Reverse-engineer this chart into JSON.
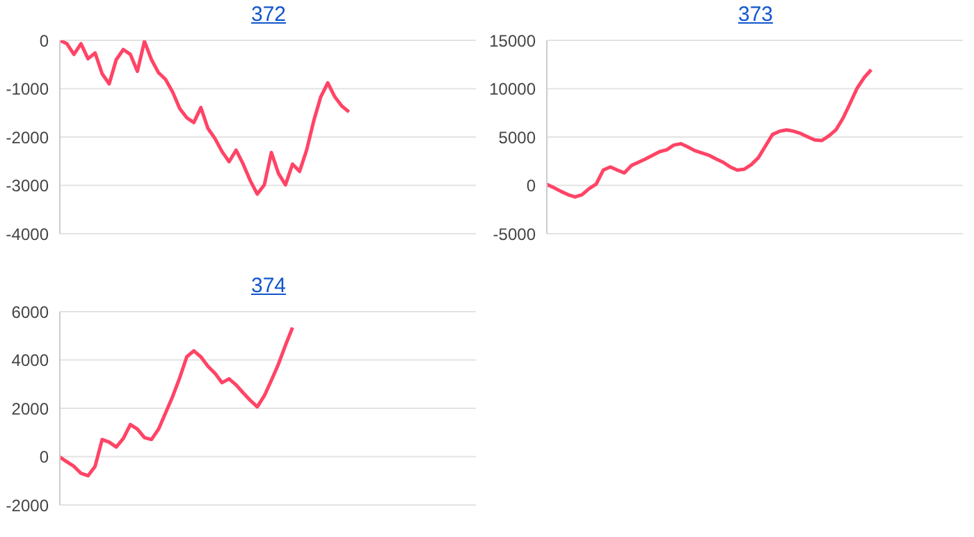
{
  "chart_data": [
    {
      "type": "line",
      "title": "372",
      "categories": [
        null,
        null,
        null,
        null,
        null,
        null,
        null,
        null,
        null,
        null,
        null,
        null,
        null,
        null,
        null,
        null,
        null,
        null,
        null,
        null,
        null,
        null,
        null,
        null,
        null,
        null,
        null,
        null,
        null,
        null,
        null,
        null,
        null,
        null,
        null,
        null,
        null,
        null,
        null,
        null,
        null,
        null,
        null,
        null,
        null,
        null,
        null,
        null,
        null,
        null,
        null,
        null,
        null,
        null,
        null,
        null,
        null,
        null,
        null,
        null
      ],
      "series": [
        {
          "color": "#ff4466",
          "values": [
            0,
            -70,
            -290,
            -70,
            -380,
            -260,
            -690,
            -900,
            -400,
            -190,
            -290,
            -640,
            -20,
            -400,
            -670,
            -810,
            -1070,
            -1410,
            -1600,
            -1700,
            -1390,
            -1820,
            -2030,
            -2300,
            -2510,
            -2270,
            -2560,
            -2900,
            -3180,
            -2990,
            -2320,
            -2750,
            -2990,
            -2560,
            -2710,
            -2270,
            -1670,
            -1170,
            -880,
            -1170,
            -1360,
            -1480,
            null,
            null,
            null,
            null,
            null,
            null,
            null,
            null,
            null,
            null,
            null,
            null,
            null,
            null,
            null,
            null,
            null,
            null
          ]
        }
      ],
      "ylim": [
        -4000,
        0
      ],
      "yticks": [
        -4000,
        -3000,
        -2000,
        -1000,
        0
      ],
      "grid": "y",
      "tick_labels": "y",
      "legend": false,
      "marker": "none",
      "line_style": "solid"
    },
    {
      "type": "line",
      "title": "373",
      "categories": [
        null,
        null,
        null,
        null,
        null,
        null,
        null,
        null,
        null,
        null,
        null,
        null,
        null,
        null,
        null,
        null,
        null,
        null,
        null,
        null,
        null,
        null,
        null,
        null,
        null,
        null,
        null,
        null,
        null,
        null,
        null,
        null,
        null,
        null,
        null,
        null,
        null,
        null,
        null,
        null,
        null,
        null,
        null,
        null,
        null,
        null,
        null,
        null,
        null,
        null,
        null,
        null,
        null,
        null,
        null,
        null,
        null,
        null,
        null,
        null
      ],
      "series": [
        {
          "color": "#ff4466",
          "values": [
            100,
            -240,
            -620,
            -960,
            -1200,
            -960,
            -330,
            140,
            1580,
            1910,
            1580,
            1290,
            2060,
            2390,
            2730,
            3110,
            3490,
            3680,
            4160,
            4310,
            3970,
            3590,
            3350,
            3110,
            2730,
            2390,
            1910,
            1580,
            1670,
            2150,
            2870,
            4070,
            5260,
            5600,
            5740,
            5600,
            5360,
            5020,
            4690,
            4640,
            5120,
            5740,
            6940,
            8470,
            10050,
            11150,
            11960,
            null,
            null,
            null,
            null,
            null,
            null,
            null,
            null,
            null,
            null,
            null,
            null,
            null
          ]
        }
      ],
      "ylim": [
        -5000,
        15000
      ],
      "yticks": [
        -5000,
        0,
        5000,
        10000,
        15000
      ],
      "grid": "y",
      "tick_labels": "y",
      "legend": false,
      "marker": "none",
      "line_style": "solid"
    },
    {
      "type": "line",
      "title": "374",
      "categories": [
        null,
        null,
        null,
        null,
        null,
        null,
        null,
        null,
        null,
        null,
        null,
        null,
        null,
        null,
        null,
        null,
        null,
        null,
        null,
        null,
        null,
        null,
        null,
        null,
        null,
        null,
        null,
        null,
        null,
        null,
        null,
        null,
        null,
        null,
        null,
        null,
        null,
        null,
        null,
        null,
        null,
        null,
        null,
        null,
        null,
        null,
        null,
        null,
        null,
        null,
        null,
        null,
        null,
        null,
        null,
        null,
        null,
        null,
        null,
        null
      ],
      "series": [
        {
          "color": "#ff4466",
          "values": [
            -20,
            -210,
            -400,
            -690,
            -790,
            -400,
            710,
            600,
            400,
            750,
            1330,
            1140,
            790,
            710,
            1140,
            1810,
            2490,
            3260,
            4130,
            4380,
            4130,
            3740,
            3450,
            3060,
            3220,
            2970,
            2640,
            2330,
            2060,
            2520,
            3160,
            3830,
            4610,
            5340,
            null,
            null,
            null,
            null,
            null,
            null,
            null,
            null,
            null,
            null,
            null,
            null,
            null,
            null,
            null,
            null,
            null,
            null,
            null,
            null,
            null,
            null,
            null,
            null,
            null,
            null
          ]
        }
      ],
      "ylim": [
        -2000,
        6000
      ],
      "yticks": [
        -2000,
        0,
        2000,
        4000,
        6000
      ],
      "grid": "y",
      "tick_labels": "y",
      "legend": false,
      "marker": "none",
      "line_style": "solid"
    }
  ]
}
